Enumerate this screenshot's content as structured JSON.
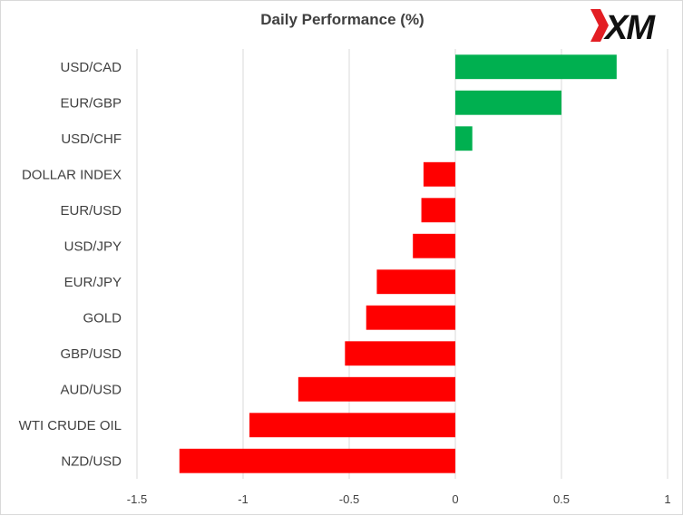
{
  "brand": {
    "logo_text": "XM",
    "accent": "#e31e24"
  },
  "chart_data": {
    "type": "bar",
    "orientation": "horizontal",
    "title": "Daily Performance  (%)",
    "xlabel": "",
    "ylabel": "",
    "categories": [
      "USD/CAD",
      "EUR/GBP",
      "USD/CHF",
      "DOLLAR INDEX",
      "EUR/USD",
      "USD/JPY",
      "EUR/JPY",
      "GOLD",
      "GBP/USD",
      "AUD/USD",
      "WTI CRUDE OIL",
      "NZD/USD"
    ],
    "values": [
      0.76,
      0.5,
      0.08,
      -0.15,
      -0.16,
      -0.2,
      -0.37,
      -0.42,
      -0.52,
      -0.74,
      -0.97,
      -1.3
    ],
    "xlim": [
      -1.5,
      1
    ],
    "xticks": [
      "-1.5",
      "-1",
      "-0.5",
      "0",
      "0.5",
      "1"
    ],
    "grid": "vertical",
    "legend": "none",
    "colors": {
      "positive": "#00b050",
      "negative": "#ff0000",
      "grid": "#d9d9d9",
      "text": "#404040"
    }
  }
}
